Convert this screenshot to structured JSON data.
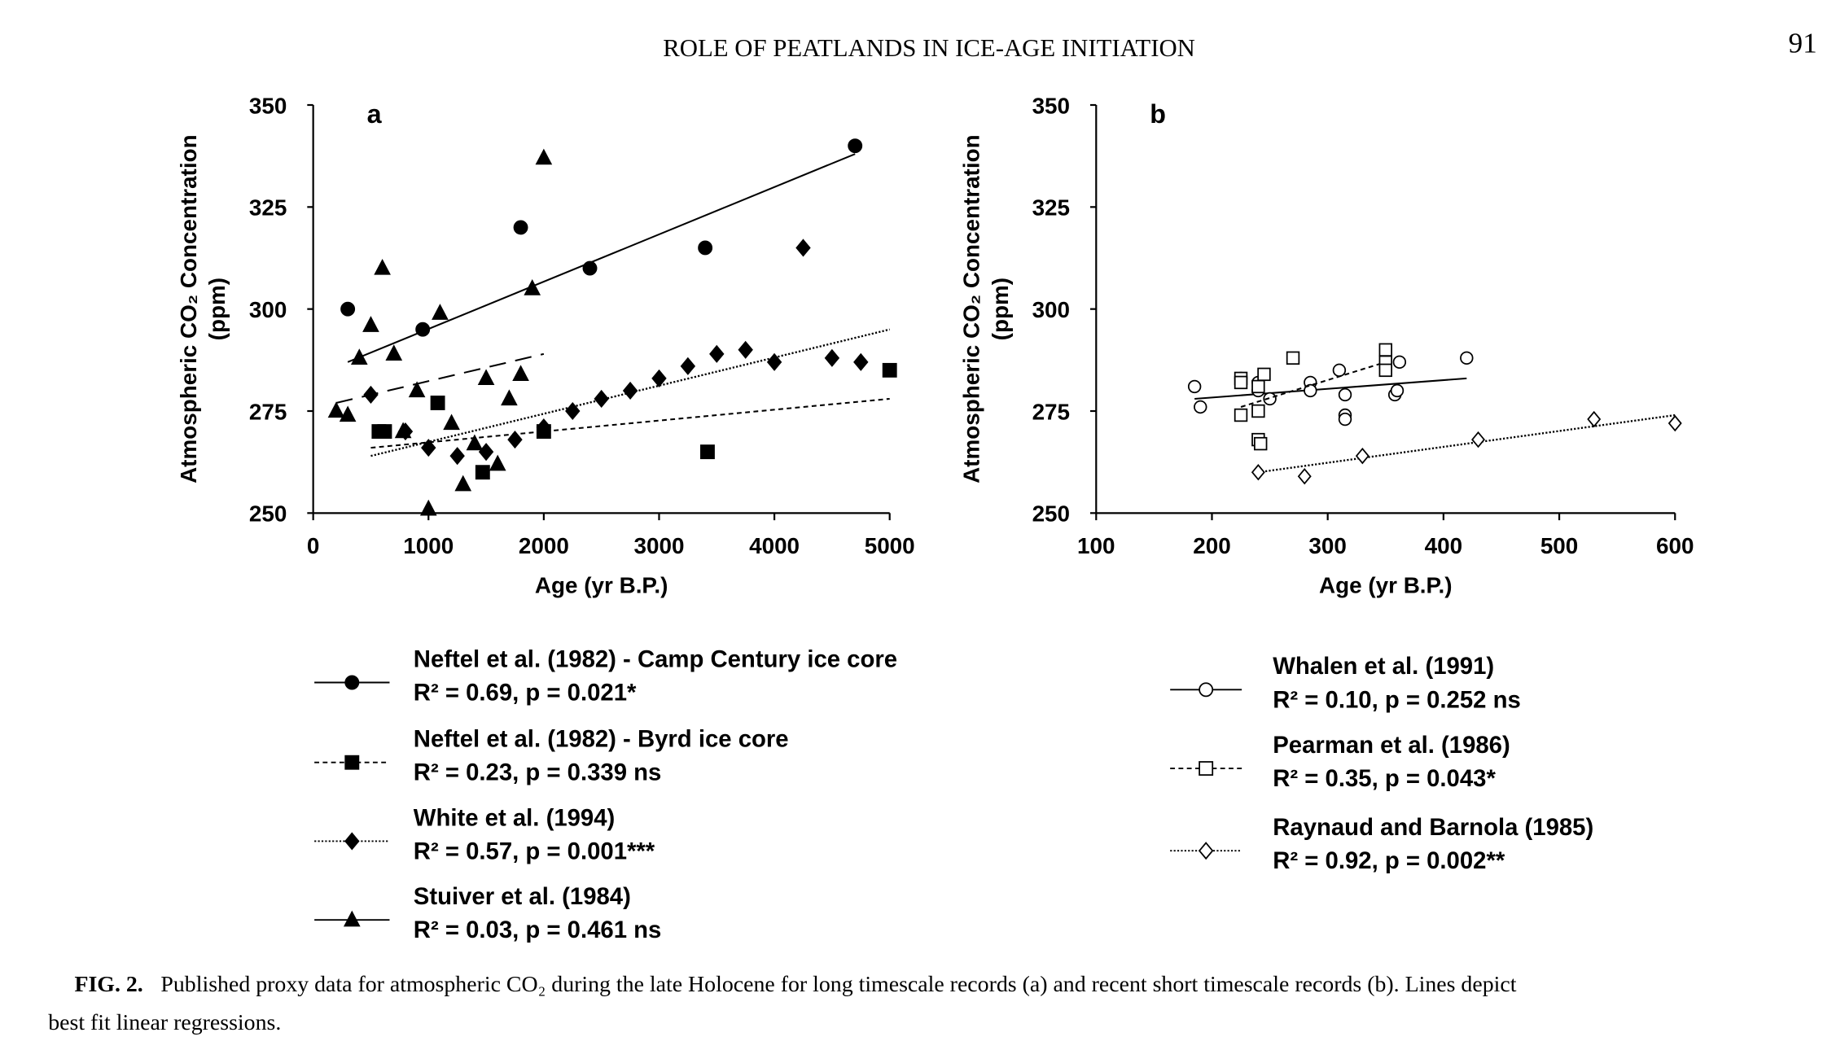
{
  "header": {
    "title": "ROLE OF PEATLANDS IN ICE-AGE INITIATION",
    "page_number": "91"
  },
  "caption": {
    "line1_bold": "FIG. 2.",
    "line1": "Published proxy data for atmospheric CO₂ during the late Holocene for long timescale records (a) and recent short timescale records (b). Lines depict",
    "line2": "best fit linear regressions."
  },
  "chart_data": [
    {
      "type": "scatter",
      "panel_label": "a",
      "xlabel": "Age (yr B.P.)",
      "ylabel": "Atmospheric CO₂ Concentration",
      "ylabel2": "(ppm)",
      "xlim": [
        0,
        5000
      ],
      "ylim": [
        250,
        350
      ],
      "xticks": [
        "0",
        "1000",
        "2000",
        "3000",
        "4000",
        "5000"
      ],
      "yticks": [
        "250",
        "275",
        "300",
        "325",
        "350"
      ],
      "grid": false,
      "legend_position": "bottom",
      "series": [
        {
          "name": "Neftel et al. (1982) - Camp Century ice core",
          "stats": "R² = 0.69, p = 0.021*",
          "marker": "circle-filled",
          "line": "solid",
          "points": [
            [
              300,
              300
            ],
            [
              950,
              295
            ],
            [
              1800,
              320
            ],
            [
              2400,
              310
            ],
            [
              3400,
              315
            ],
            [
              4700,
              340
            ]
          ],
          "fit": [
            [
              300,
              287
            ],
            [
              4700,
              338
            ]
          ]
        },
        {
          "name": "Neftel et al. (1982) - Byrd ice core",
          "stats": "R² = 0.23, p = 0.339 ns",
          "marker": "square-filled",
          "line": "dashed",
          "points": [
            [
              570,
              270
            ],
            [
              620,
              270
            ],
            [
              1080,
              277
            ],
            [
              1470,
              260
            ],
            [
              2000,
              270
            ],
            [
              3420,
              265
            ],
            [
              5000,
              285
            ]
          ],
          "fit": [
            [
              500,
              266
            ],
            [
              5000,
              278
            ]
          ]
        },
        {
          "name": "White et al. (1994)",
          "stats": "R² = 0.57, p = 0.001***",
          "marker": "diamond-filled",
          "line": "dotted",
          "points": [
            [
              500,
              279
            ],
            [
              800,
              270
            ],
            [
              1000,
              266
            ],
            [
              1250,
              264
            ],
            [
              1500,
              265
            ],
            [
              1750,
              268
            ],
            [
              2000,
              271
            ],
            [
              2250,
              275
            ],
            [
              2500,
              278
            ],
            [
              2750,
              280
            ],
            [
              3000,
              283
            ],
            [
              3250,
              286
            ],
            [
              3500,
              289
            ],
            [
              3750,
              290
            ],
            [
              4000,
              287
            ],
            [
              4250,
              315
            ],
            [
              4500,
              288
            ],
            [
              4750,
              287
            ]
          ],
          "fit": [
            [
              500,
              264
            ],
            [
              5000,
              295
            ]
          ]
        },
        {
          "name": "Stuiver et al. (1984)",
          "stats": "R² = 0.03, p = 0.461 ns",
          "marker": "triangle-filled",
          "line": "longdash",
          "points": [
            [
              200,
              275
            ],
            [
              300,
              274
            ],
            [
              400,
              288
            ],
            [
              500,
              296
            ],
            [
              600,
              310
            ],
            [
              700,
              289
            ],
            [
              780,
              270
            ],
            [
              900,
              280
            ],
            [
              1000,
              251
            ],
            [
              1100,
              299
            ],
            [
              1200,
              272
            ],
            [
              1300,
              257
            ],
            [
              1400,
              267
            ],
            [
              1500,
              283
            ],
            [
              1600,
              262
            ],
            [
              1700,
              278
            ],
            [
              1800,
              284
            ],
            [
              1900,
              305
            ],
            [
              2000,
              337
            ]
          ],
          "fit": [
            [
              200,
              277
            ],
            [
              2000,
              289
            ]
          ]
        }
      ]
    },
    {
      "type": "scatter",
      "panel_label": "b",
      "xlabel": "Age (yr B.P.)",
      "ylabel": "Atmospheric CO₂ Concentration",
      "ylabel2": "(ppm)",
      "xlim": [
        100,
        600
      ],
      "ylim": [
        250,
        350
      ],
      "xticks": [
        "100",
        "200",
        "300",
        "400",
        "500",
        "600"
      ],
      "yticks": [
        "250",
        "275",
        "300",
        "325",
        "350"
      ],
      "grid": false,
      "legend_position": "bottom",
      "series": [
        {
          "name": "Whalen et al. (1991)",
          "stats": "R² = 0.10, p = 0.252 ns",
          "marker": "circle-open",
          "line": "solid",
          "points": [
            [
              185,
              281
            ],
            [
              190,
              276
            ],
            [
              225,
              283
            ],
            [
              240,
              282
            ],
            [
              240,
              280
            ],
            [
              250,
              278
            ],
            [
              285,
              282
            ],
            [
              285,
              280
            ],
            [
              310,
              285
            ],
            [
              315,
              279
            ],
            [
              315,
              274
            ],
            [
              315,
              273
            ],
            [
              358,
              279
            ],
            [
              360,
              280
            ],
            [
              362,
              287
            ],
            [
              420,
              288
            ]
          ],
          "fit": [
            [
              185,
              278
            ],
            [
              420,
              283
            ]
          ]
        },
        {
          "name": "Pearman et al. (1986)",
          "stats": "R² = 0.35, p = 0.043*",
          "marker": "square-open",
          "line": "dashed",
          "points": [
            [
              225,
              274
            ],
            [
              225,
              283
            ],
            [
              225,
              282
            ],
            [
              240,
              275
            ],
            [
              240,
              281
            ],
            [
              240,
              268
            ],
            [
              242,
              267
            ],
            [
              245,
              284
            ],
            [
              270,
              288
            ],
            [
              350,
              290
            ],
            [
              350,
              287
            ],
            [
              350,
              285
            ]
          ],
          "fit": [
            [
              225,
              276
            ],
            [
              350,
              287
            ]
          ]
        },
        {
          "name": "Raynaud and Barnola (1985)",
          "stats": "R² = 0.92, p = 0.002**",
          "marker": "diamond-open",
          "line": "dotted",
          "points": [
            [
              240,
              260
            ],
            [
              280,
              259
            ],
            [
              330,
              264
            ],
            [
              430,
              268
            ],
            [
              530,
              273
            ],
            [
              600,
              272
            ]
          ],
          "fit": [
            [
              240,
              260
            ],
            [
              600,
              274
            ]
          ]
        }
      ]
    }
  ]
}
